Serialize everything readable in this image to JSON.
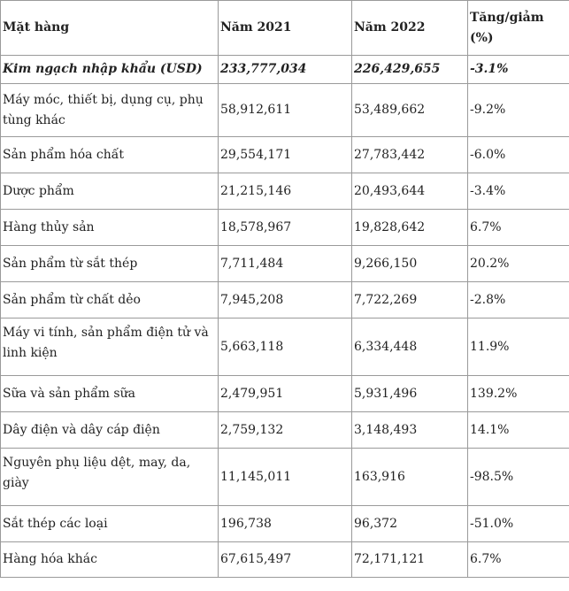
{
  "table": {
    "headers": [
      "Mặt hàng",
      "Năm 2021",
      "Năm 2022",
      "Tăng/giảm (%)"
    ],
    "summary": [
      "Kim ngạch nhập khẩu (USD)",
      "233,777,034",
      "226,429,655",
      "-3.1%"
    ],
    "rows": [
      [
        "Máy móc, thiết bị, dụng cụ, phụ tùng khác",
        "58,912,611",
        "53,489,662",
        "-9.2%"
      ],
      [
        "Sản phẩm hóa chất",
        "29,554,171",
        "27,783,442",
        "-6.0%"
      ],
      [
        "Dược phẩm",
        "21,215,146",
        "20,493,644",
        "-3.4%"
      ],
      [
        "Hàng thủy sản",
        "18,578,967",
        "19,828,642",
        "6.7%"
      ],
      [
        "Sản phẩm từ sắt thép",
        "7,711,484",
        "9,266,150",
        "20.2%"
      ],
      [
        "Sản phẩm từ chất dẻo",
        "7,945,208",
        "7,722,269",
        "-2.8%"
      ],
      [
        "Máy vi tính, sản phẩm điện tử và linh kiện",
        "5,663,118",
        "6,334,448",
        "11.9%"
      ],
      [
        "Sữa và sản phẩm sữa",
        "2,479,951",
        "5,931,496",
        "139.2%"
      ],
      [
        "Dây điện và dây cáp điện",
        "2,759,132",
        "3,148,493",
        "14.1%"
      ],
      [
        "Nguyên phụ liệu dệt, may, da, giày",
        "11,145,011",
        "163,916",
        "-98.5%"
      ],
      [
        "Sắt thép các loại",
        "196,738",
        "96,372",
        "-51.0%"
      ],
      [
        "Hàng hóa khác",
        "67,615,497",
        "72,171,121",
        "6.7%"
      ]
    ]
  }
}
